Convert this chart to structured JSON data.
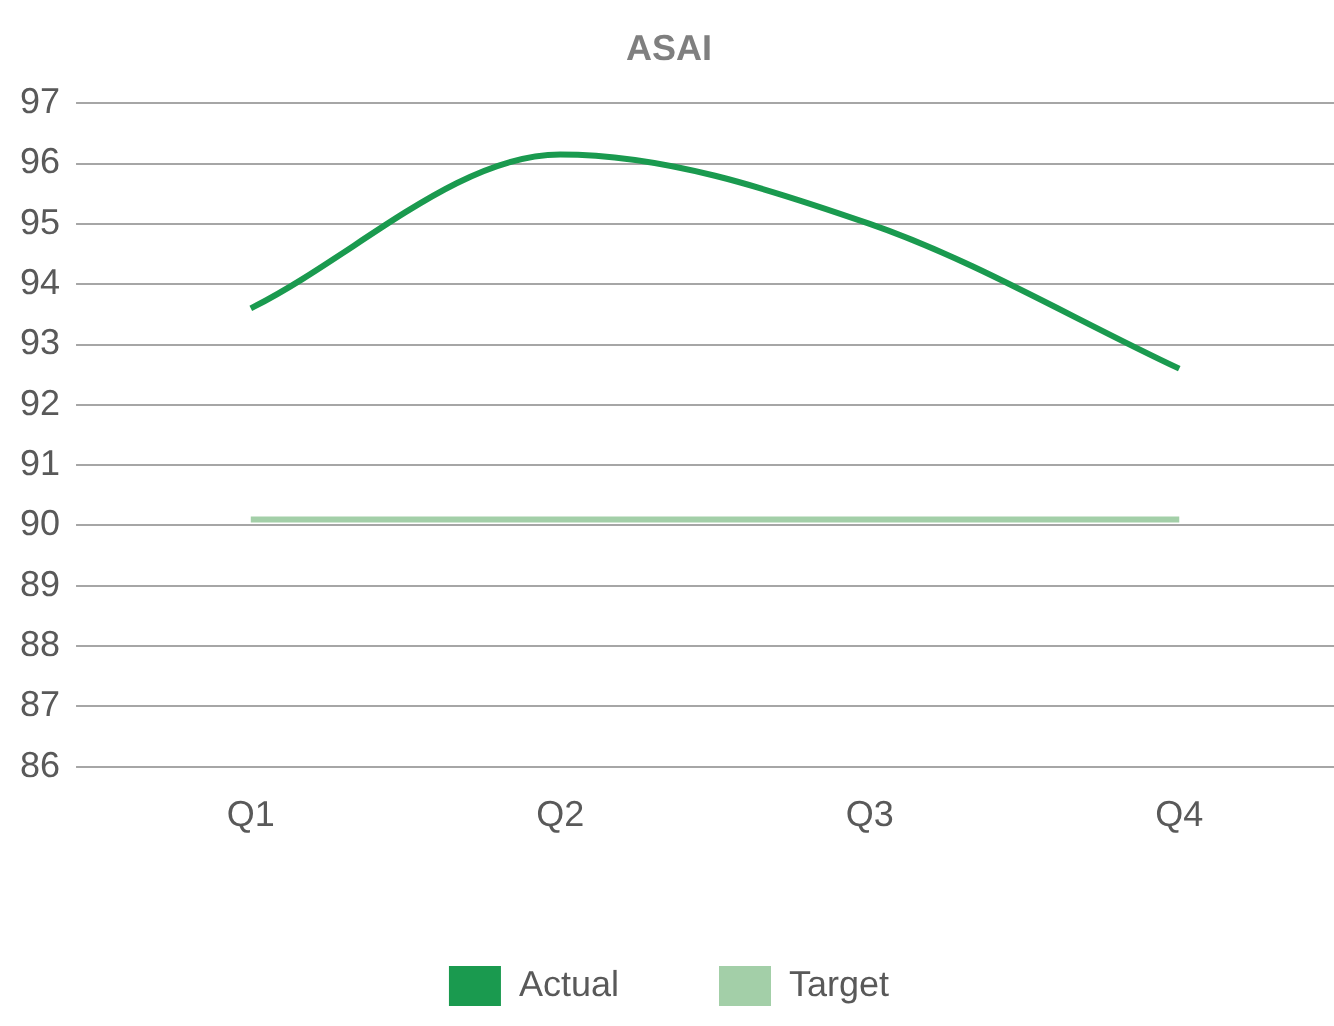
{
  "chart_data": {
    "type": "line",
    "title": "ASAI",
    "categories": [
      "Q1",
      "Q2",
      "Q3",
      "Q4"
    ],
    "series": [
      {
        "name": "Actual",
        "color": "#1a9a4f",
        "values": [
          93.6,
          96.15,
          95.0,
          92.6
        ]
      },
      {
        "name": "Target",
        "color": "#a3cfa8",
        "values": [
          90.1,
          90.1,
          90.1,
          90.1
        ]
      }
    ],
    "ylim": [
      86,
      97
    ],
    "yticks": [
      86,
      87,
      88,
      89,
      90,
      91,
      92,
      93,
      94,
      95,
      96,
      97
    ],
    "grid": "y",
    "legend": "bottom",
    "marker": "none",
    "line_style": "solid"
  }
}
